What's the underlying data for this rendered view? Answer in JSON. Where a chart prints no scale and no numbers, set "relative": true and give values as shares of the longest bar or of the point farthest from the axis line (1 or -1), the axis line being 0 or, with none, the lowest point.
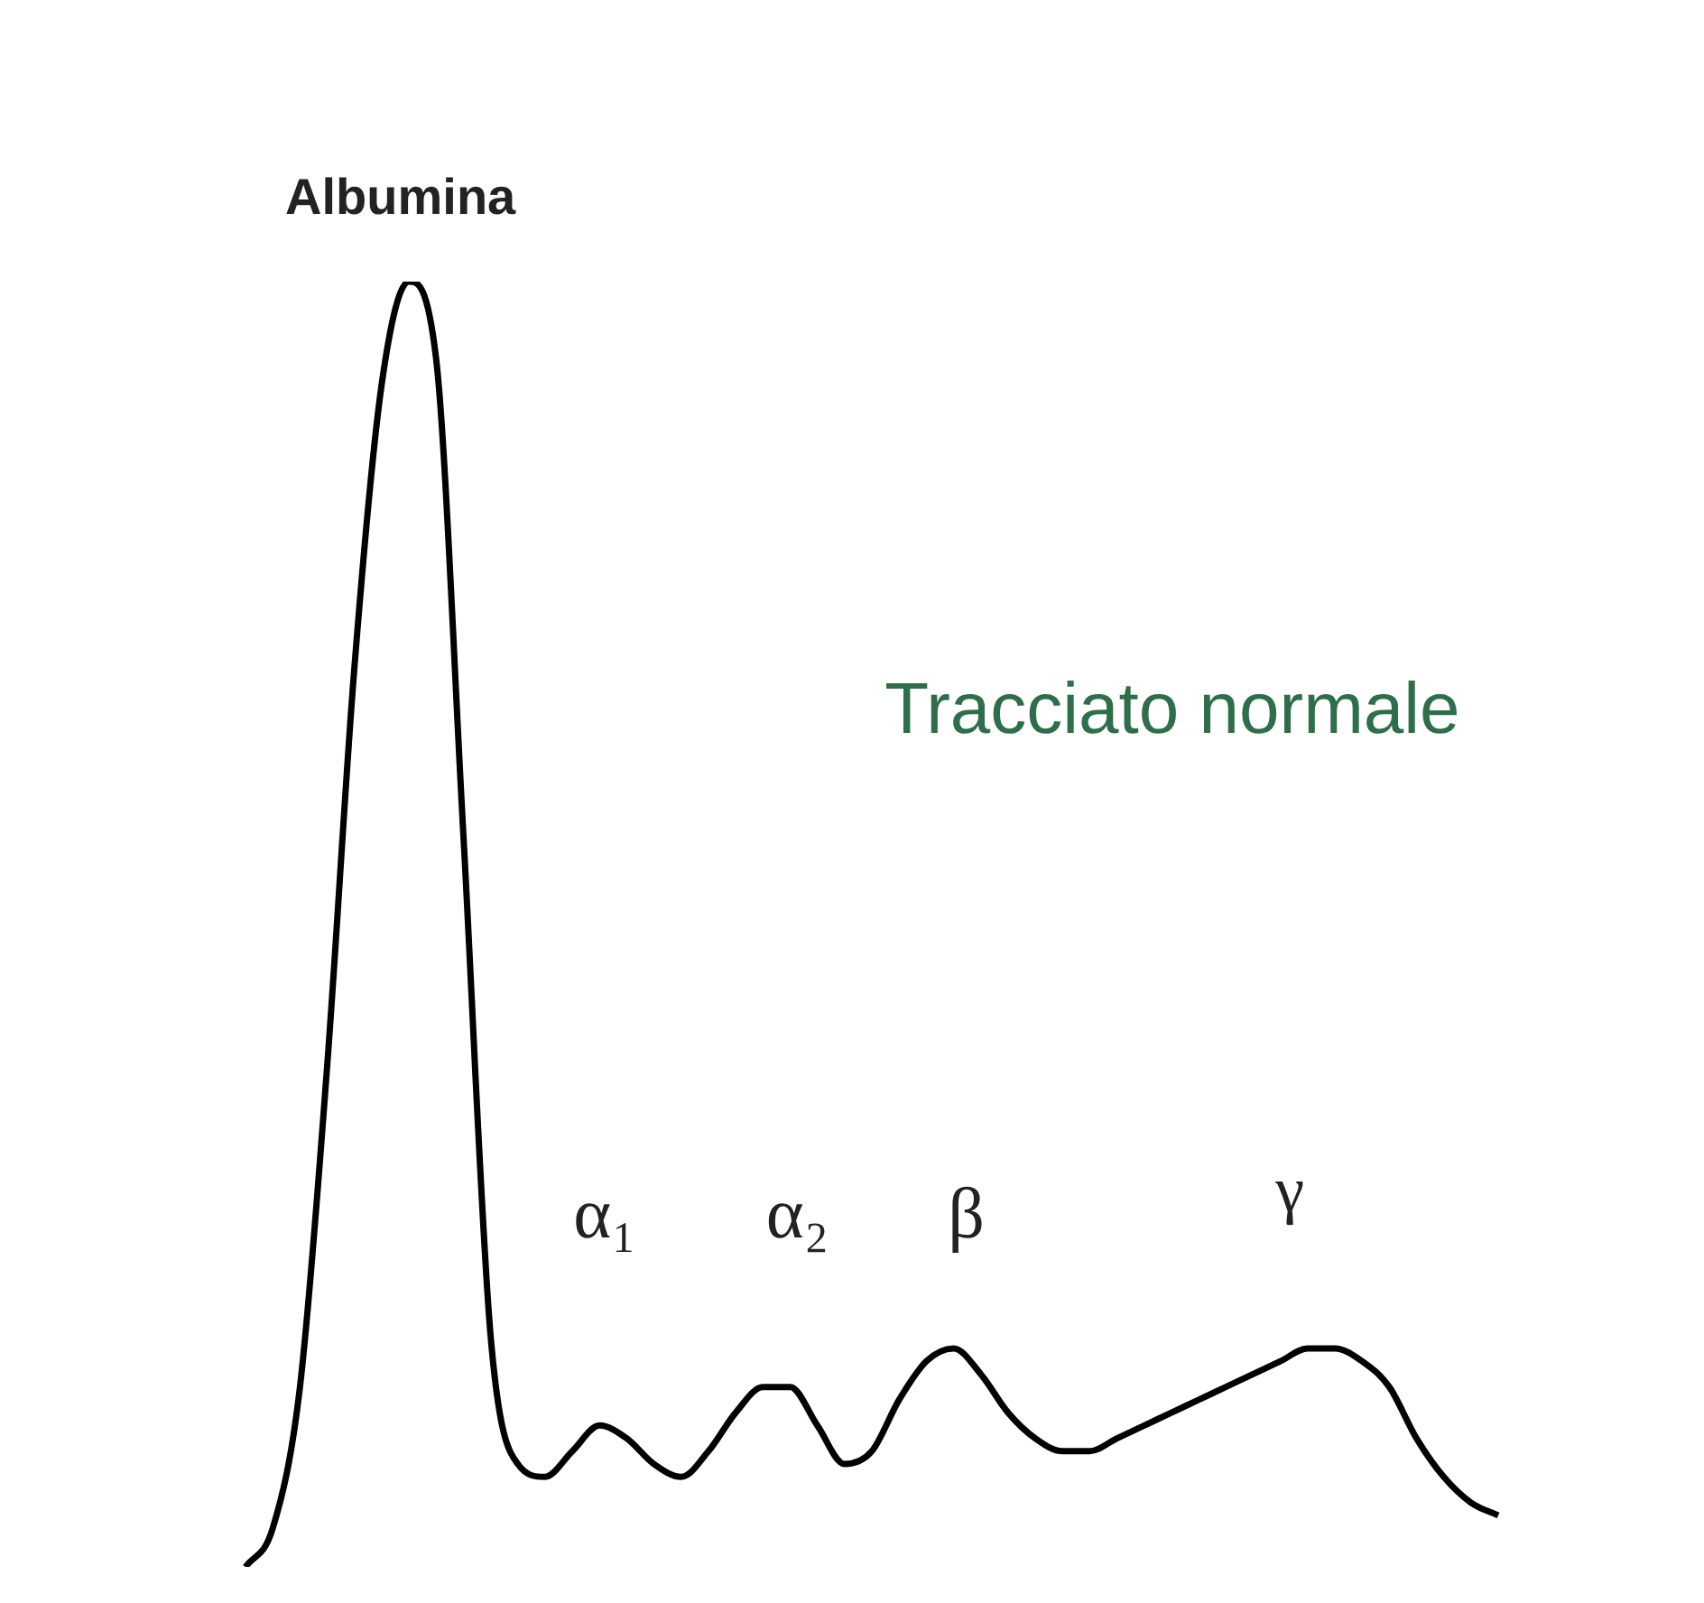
{
  "chart_data": {
    "type": "line",
    "relative": true,
    "categories": [
      null,
      null,
      null,
      null,
      null,
      null,
      null,
      null,
      null,
      null,
      null,
      null,
      null,
      null,
      null,
      null,
      null,
      null,
      null,
      null,
      null,
      null,
      null,
      null,
      null,
      null,
      null,
      null,
      null,
      null,
      null,
      null,
      null,
      null,
      null,
      null,
      null,
      null,
      null,
      null,
      null,
      null,
      null,
      null,
      null,
      null,
      null
    ],
    "series": [
      {
        "color": "#000000",
        "values": [
          0,
          0.03,
          0.14,
          0.39,
          0.7,
          0.92,
          1,
          0.94,
          0.57,
          0.18,
          0.08,
          0.07,
          0.09,
          0.11,
          0.1,
          0.08,
          0.07,
          0.09,
          0.12,
          0.14,
          0.14,
          0.11,
          0.08,
          0.09,
          0.13,
          0.16,
          0.17,
          0.15,
          0.12,
          0.1,
          0.09,
          0.09,
          0.1,
          0.11,
          0.12,
          0.13,
          0.14,
          0.15,
          0.16,
          0.17,
          0.17,
          0.16,
          0.14,
          0.1,
          0.07,
          0.05,
          0.04
        ]
      }
    ],
    "annotations": [
      "Albumina",
      "α₁",
      "α₂",
      "β",
      "γ",
      "Tracciato normale"
    ]
  }
}
